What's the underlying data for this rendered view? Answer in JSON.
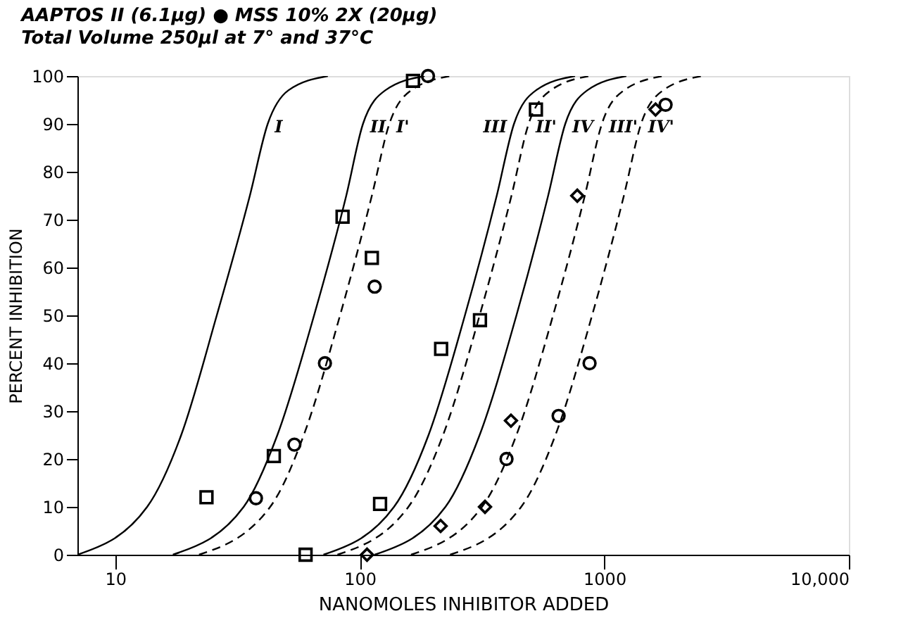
{
  "chart_data": {
    "type": "line",
    "title": "AAPTOS II (6.1μg) ● MSS 10% 2X (20μg)",
    "subtitle": "Total Volume 250μl at 7° and 37°C",
    "xlabel": "NANOMOLES INHIBITOR ADDED",
    "ylabel": "PERCENT INHIBITION",
    "log": "x",
    "xlim": [
      7,
      10000
    ],
    "xticks": [
      10,
      100,
      1000,
      {
        "value": 10000,
        "label": "10,000"
      }
    ],
    "ylim": [
      0,
      100
    ],
    "yticks": [
      0,
      10,
      20,
      30,
      40,
      50,
      60,
      70,
      80,
      90,
      100
    ],
    "grid": false,
    "series": [
      {
        "name": "I",
        "line_style": "solid",
        "color": "#000000",
        "x": [
          7,
          13.5,
          18.6,
          26,
          35.5,
          42,
          51,
          74
        ],
        "values": [
          0,
          10,
          25,
          50,
          75,
          90,
          97,
          100
        ]
      },
      {
        "name": "II",
        "line_style": "solid",
        "color": "#000000",
        "x": [
          17.2,
          33.5,
          46,
          65,
          88,
          103,
          127,
          184
        ],
        "values": [
          0,
          10,
          25,
          50,
          75,
          90,
          97,
          100
        ]
      },
      {
        "name": "I'",
        "line_style": "dashed",
        "color": "#000000",
        "x": [
          22,
          43,
          59,
          83,
          112,
          132,
          162,
          234
        ],
        "values": [
          0,
          10,
          25,
          50,
          75,
          90,
          97,
          100
        ]
      },
      {
        "name": "III",
        "line_style": "solid",
        "color": "#000000",
        "x": [
          71,
          138,
          191,
          269,
          363,
          427,
          525,
          759
        ],
        "values": [
          0,
          10,
          25,
          50,
          75,
          90,
          97,
          100
        ]
      },
      {
        "name": "II'",
        "line_style": "dashed",
        "color": "#000000",
        "x": [
          81,
          158,
          219,
          309,
          417,
          490,
          603,
          871
        ],
        "values": [
          0,
          10,
          25,
          50,
          75,
          90,
          97,
          100
        ]
      },
      {
        "name": "IV",
        "line_style": "solid",
        "color": "#000000",
        "x": [
          115,
          224,
          309,
          437,
          589,
          692,
          851,
          1230
        ],
        "values": [
          0,
          10,
          25,
          50,
          75,
          90,
          97,
          100
        ]
      },
      {
        "name": "III'",
        "line_style": "dashed",
        "color": "#000000",
        "x": [
          162,
          316,
          437,
          617,
          832,
          977,
          1202,
          1738
        ],
        "values": [
          0,
          10,
          25,
          50,
          75,
          90,
          97,
          100
        ]
      },
      {
        "name": "IV'",
        "line_style": "dashed",
        "color": "#000000",
        "x": [
          234,
          457,
          631,
          891,
          1202,
          1413,
          1738,
          2512
        ],
        "values": [
          0,
          10,
          25,
          50,
          75,
          90,
          97,
          100
        ]
      },
      {
        "type": "scatter",
        "marker": "square",
        "color": "#000000",
        "x": [
          23.6,
          44.5,
          60,
          85,
          112,
          121,
          165,
          215,
          310,
          525
        ],
        "values": [
          12,
          20.6,
          0,
          70.6,
          62,
          10.6,
          99,
          43,
          49,
          93
        ]
      },
      {
        "type": "scatter",
        "marker": "circle",
        "color": "#000000",
        "x": [
          37.6,
          54,
          72,
          115,
          190
        ],
        "values": [
          11.8,
          23,
          40,
          56,
          100
        ]
      },
      {
        "type": "scatter",
        "marker": "diamond",
        "color": "#000000",
        "x": [
          107,
          214,
          325,
          415,
          775,
          1620
        ],
        "values": [
          0,
          6,
          10,
          28,
          75,
          93
        ]
      },
      {
        "type": "scatter",
        "marker": "circle",
        "color": "#000000",
        "x": [
          398,
          650,
          870,
          1780
        ],
        "values": [
          20,
          29,
          40,
          94
        ]
      }
    ]
  }
}
